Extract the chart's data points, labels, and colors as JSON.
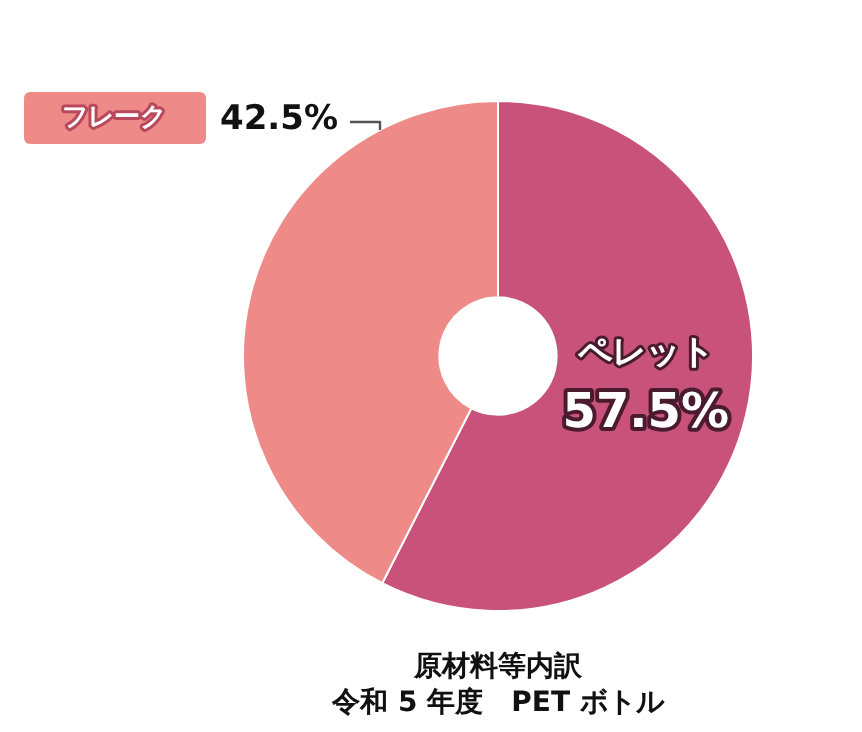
{
  "chart_data": {
    "type": "donut",
    "annotations": [
      "原材料等内訳",
      "令和 5 年度　PET ボトル"
    ],
    "categories": [
      "ペレット",
      "フレーク"
    ],
    "values": [
      57.5,
      42.5
    ],
    "value_labels": [
      "57.5%",
      "42.5%"
    ],
    "colors": [
      "#c8527a",
      "#ee8a88"
    ],
    "legend": false
  }
}
